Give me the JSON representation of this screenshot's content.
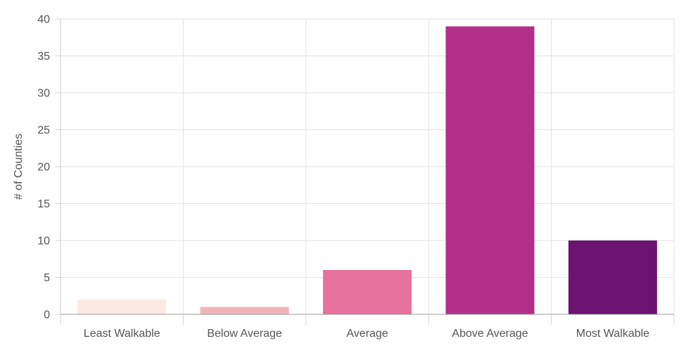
{
  "chart_data": {
    "type": "bar",
    "categories": [
      "Least Walkable",
      "Below Average",
      "Average",
      "Above Average",
      "Most Walkable"
    ],
    "values": [
      2,
      1,
      6,
      39,
      10
    ],
    "colors": [
      "#fbe9e3",
      "#f0b5bc",
      "#e7729d",
      "#b12f87",
      "#6c1270"
    ],
    "title": "",
    "xlabel": "",
    "ylabel": "# of Counties",
    "ylim": [
      0,
      40
    ],
    "yticks": [
      0,
      5,
      10,
      15,
      20,
      25,
      30,
      35,
      40
    ],
    "grid": true,
    "legend": "none"
  }
}
